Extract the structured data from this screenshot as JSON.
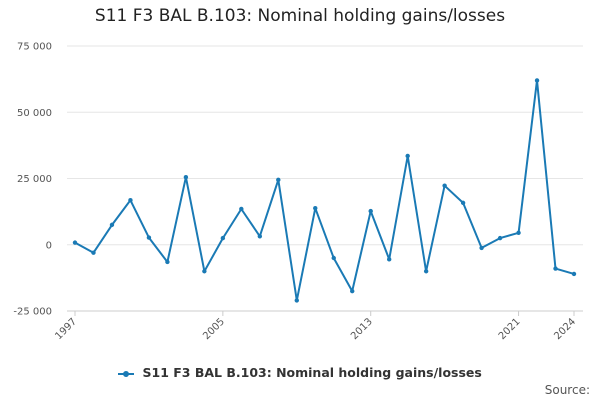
{
  "chart_data": {
    "type": "line",
    "title": "S11 F3 BAL B.103: Nominal holding gains/losses",
    "xlabel": "",
    "ylabel": "",
    "x": [
      1997,
      1998,
      1999,
      2000,
      2001,
      2002,
      2003,
      2004,
      2005,
      2006,
      2007,
      2008,
      2009,
      2010,
      2011,
      2012,
      2013,
      2014,
      2015,
      2016,
      2017,
      2018,
      2019,
      2020,
      2021,
      2022,
      2023,
      2024
    ],
    "x_tick_labels": [
      "1997",
      "2005",
      "2013",
      "2021",
      "2024"
    ],
    "x_ticks": [
      1997,
      2005,
      2013,
      2021,
      2024
    ],
    "y_ticks": [
      -25000,
      0,
      25000,
      50000,
      75000
    ],
    "y_tick_labels": [
      "-25 000",
      "0",
      "25 000",
      "50 000",
      "75 000"
    ],
    "ylim": [
      -25000,
      75000
    ],
    "xlim": [
      1997,
      2024
    ],
    "grid": true,
    "legend_position": "bottom",
    "series": [
      {
        "name": "S11 F3 BAL B.103: Nominal holding gains/losses",
        "color": "#1a7ab5",
        "values": [
          800,
          -3000,
          7500,
          16800,
          2700,
          -6500,
          25500,
          -10000,
          2500,
          13500,
          3200,
          24500,
          -21000,
          13800,
          -5000,
          -17500,
          12700,
          -5500,
          33500,
          -10000,
          22300,
          15800,
          -1200,
          2500,
          4500,
          62000,
          -9000,
          -11000
        ]
      }
    ]
  },
  "legend_label": "S11 F3 BAL B.103: Nominal holding gains/losses",
  "source_label": "Source:"
}
